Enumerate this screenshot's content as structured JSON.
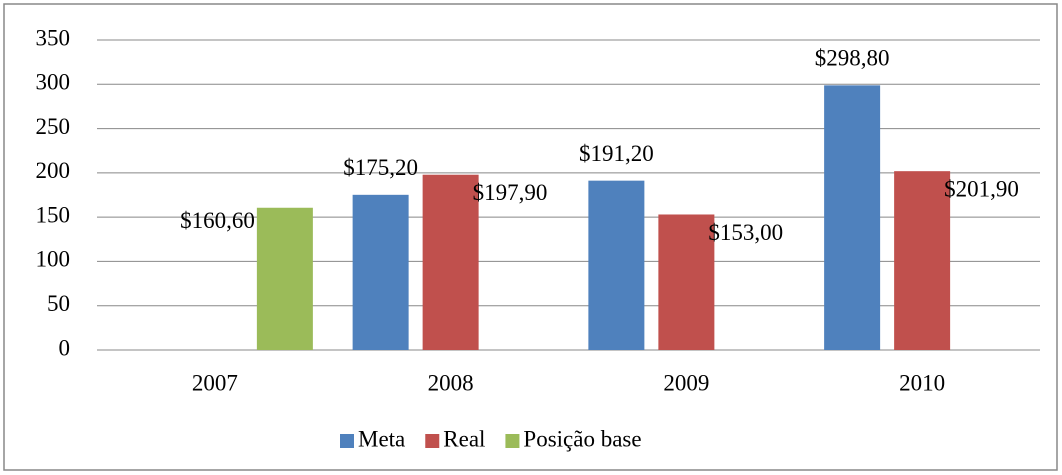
{
  "chart_data": {
    "type": "bar",
    "categories": [
      "2007",
      "2008",
      "2009",
      "2010"
    ],
    "series": [
      {
        "name": "Meta",
        "color": "#4f81bd",
        "values": [
          null,
          175.2,
          191.2,
          298.8
        ],
        "value_labels": [
          null,
          "$175,20",
          "$191,20",
          "$298,80"
        ]
      },
      {
        "name": "Real",
        "color": "#c0504d",
        "values": [
          null,
          197.9,
          153.0,
          201.9
        ],
        "value_labels": [
          null,
          "$197,90",
          "$153,00",
          "$201,90"
        ]
      },
      {
        "name": "Posição base",
        "color": "#9bbb59",
        "values": [
          160.6,
          null,
          null,
          null
        ],
        "value_labels": [
          "$160,60",
          null,
          null,
          null
        ]
      }
    ],
    "ylim": [
      0,
      350
    ],
    "yticks": [
      0,
      50,
      100,
      150,
      200,
      250,
      300,
      350
    ],
    "grid": true,
    "legend": "bottom"
  }
}
